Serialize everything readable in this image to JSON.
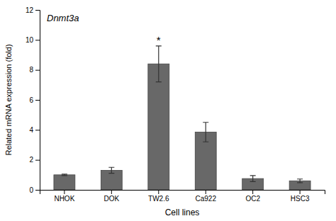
{
  "chart_data": {
    "type": "bar",
    "title": "Dnmt3a",
    "xlabel": "Cell lines",
    "ylabel": "Related mRNA expression (fold)",
    "categories": [
      "NHOK",
      "DOK",
      "TW2.6",
      "Ca922",
      "OC2",
      "HSC3"
    ],
    "values": [
      1.0,
      1.3,
      8.4,
      3.85,
      0.75,
      0.6
    ],
    "errors": [
      0.05,
      0.2,
      1.2,
      0.65,
      0.2,
      0.12
    ],
    "color": "#686868",
    "ylim": [
      0,
      12
    ],
    "yticks": [
      0,
      2,
      4,
      6,
      8,
      10,
      12
    ],
    "grid": false,
    "annotations": [
      {
        "text": "*",
        "category": "TW2.6"
      }
    ]
  }
}
